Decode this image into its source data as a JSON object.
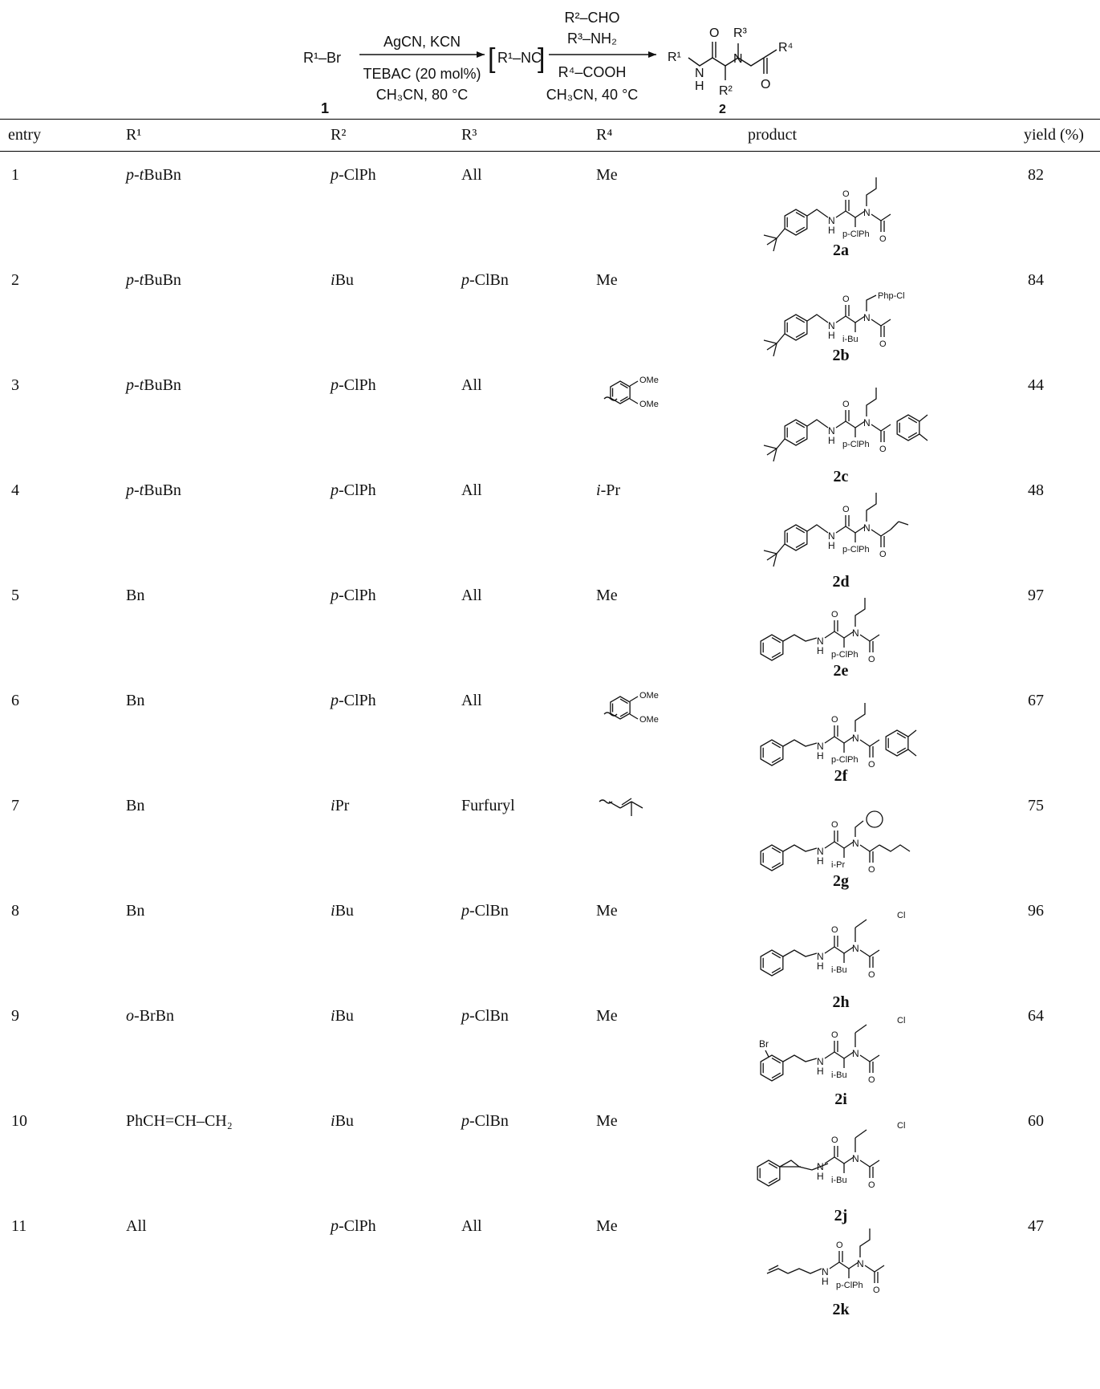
{
  "scheme": {
    "reactant": "R¹–Br",
    "reactant_number": "1",
    "step1_above": "AgCN, KCN",
    "step1_below1": "TEBAC (20 mol%)",
    "step1_below2": "CH₃CN, 80 °C",
    "intermediate": "R¹–NC",
    "step2_above1": "R²–CHO",
    "step2_above2": "R³–NH₂",
    "step2_below1": "R⁴–COOH",
    "step2_below2": "CH₃CN, 40 °C",
    "product_number": "2"
  },
  "table": {
    "headers": {
      "entry": "entry",
      "r1": "R¹",
      "r2": "R²",
      "r3": "R³",
      "r4": "R⁴",
      "product": "product",
      "yield": "yield (%)"
    },
    "rows": [
      {
        "entry": "1",
        "r1": "p-tBuBn",
        "r2": "p-ClPh",
        "r3": "All",
        "r4": "Me",
        "label": "2a",
        "yield": "82",
        "sub_r2": "p-ClPh",
        "sub_r3": ""
      },
      {
        "entry": "2",
        "r1": "p-tBuBn",
        "r2": "iBu",
        "r3": "p-ClBn",
        "r4": "Me",
        "label": "2b",
        "yield": "84",
        "sub_r2": "i-Bu",
        "sub_r3": "Php-Cl"
      },
      {
        "entry": "3",
        "r1": "p-tBuBn",
        "r2": "p-ClPh",
        "r3": "All",
        "r4": "",
        "label": "2c",
        "yield": "44",
        "sub_r2": "p-ClPh",
        "sub_r3": ""
      },
      {
        "entry": "4",
        "r1": "p-tBuBn",
        "r2": "p-ClPh",
        "r3": "All",
        "r4": "i-Pr",
        "label": "2d",
        "yield": "48",
        "sub_r2": "p-ClPh",
        "sub_r3": ""
      },
      {
        "entry": "5",
        "r1": "Bn",
        "r2": "p-ClPh",
        "r3": "All",
        "r4": "Me",
        "label": "2e",
        "yield": "97",
        "sub_r2": "p-ClPh",
        "sub_r3": ""
      },
      {
        "entry": "6",
        "r1": "Bn",
        "r2": "p-ClPh",
        "r3": "All",
        "r4": "",
        "label": "2f",
        "yield": "67",
        "sub_r2": "p-ClPh",
        "sub_r3": ""
      },
      {
        "entry": "7",
        "r1": "Bn",
        "r2": "iPr",
        "r3": "Furfuryl",
        "r4": "",
        "label": "2g",
        "yield": "75",
        "sub_r2": "i-Pr",
        "sub_r3": ""
      },
      {
        "entry": "8",
        "r1": "Bn",
        "r2": "iBu",
        "r3": "p-ClBn",
        "r4": "Me",
        "label": "2h",
        "yield": "96",
        "sub_r2": "i-Bu",
        "sub_r3": "Cl"
      },
      {
        "entry": "9",
        "r1": "o-BrBn",
        "r2": "iBu",
        "r3": "p-ClBn",
        "r4": "Me",
        "label": "2i",
        "yield": "64",
        "sub_r2": "i-Bu",
        "sub_r3": "Cl"
      },
      {
        "entry": "10",
        "r1": "PhCH=CH–CH₂",
        "r2": "iBu",
        "r3": "p-ClBn",
        "r4": "Me",
        "label": "2j",
        "yield": "60",
        "sub_r2": "i-Bu",
        "sub_r3": "Cl"
      },
      {
        "entry": "11",
        "r1": "All",
        "r2": "p-ClPh",
        "r3": "All",
        "r4": "Me",
        "label": "2k",
        "yield": "47",
        "sub_r2": "p-ClPh",
        "sub_r3": ""
      }
    ]
  },
  "r4_structures": {
    "ome": "OMe"
  },
  "r1_substituent_labels": {
    "br": "Br"
  }
}
